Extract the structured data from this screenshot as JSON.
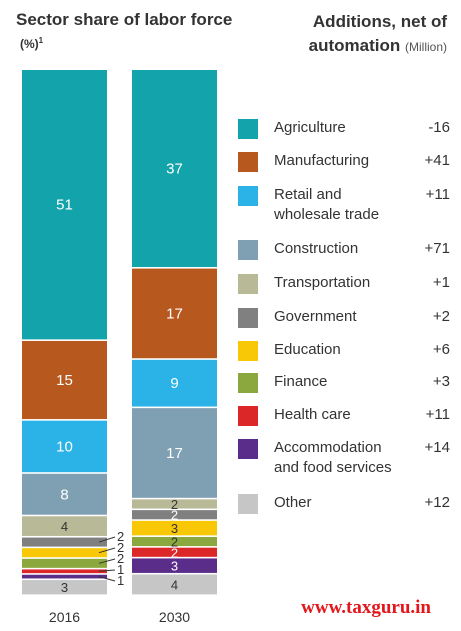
{
  "header": {
    "left_title": "Sector share of labor force",
    "left_unit": "(%)",
    "left_unit_sup": "1",
    "right_title_line1": "Additions, net of",
    "right_title_line2": "automation",
    "right_title_unit": "(Million)"
  },
  "watermark": "www.taxguru.in",
  "chart_data": {
    "type": "bar",
    "stacked": true,
    "categories": [
      "2016",
      "2030"
    ],
    "unit": "%",
    "series": [
      {
        "name": "Agriculture",
        "values": [
          51,
          37
        ],
        "labels": [
          "51",
          "37"
        ],
        "color": "#13a3ab",
        "net_addition": "-16"
      },
      {
        "name": "Manufacturing",
        "values": [
          15,
          17
        ],
        "labels": [
          "15",
          "17"
        ],
        "color": "#b7591f",
        "net_addition": "+41"
      },
      {
        "name": "Retail and wholesale trade",
        "values": [
          10,
          9
        ],
        "labels": [
          "10",
          "9"
        ],
        "color": "#2bb3e8",
        "net_addition": "+11"
      },
      {
        "name": "Construction",
        "values": [
          8,
          17
        ],
        "labels": [
          "8",
          "17"
        ],
        "color": "#7f9fb2",
        "net_addition": "+71"
      },
      {
        "name": "Transportation",
        "values": [
          4,
          2
        ],
        "labels": [
          "4",
          "2"
        ],
        "color": "#b8b996",
        "net_addition": "+1"
      },
      {
        "name": "Government",
        "values": [
          2,
          2
        ],
        "labels": [
          "2",
          "2"
        ],
        "color": "#808080",
        "net_addition": "+2"
      },
      {
        "name": "Education",
        "values": [
          2,
          3
        ],
        "labels": [
          "2",
          "3"
        ],
        "color": "#f8c807",
        "net_addition": "+6"
      },
      {
        "name": "Finance",
        "values": [
          2,
          2
        ],
        "labels": [
          "2",
          "2"
        ],
        "color": "#8aa83d",
        "net_addition": "+3"
      },
      {
        "name": "Health care",
        "values": [
          1,
          2
        ],
        "labels": [
          "1",
          "2"
        ],
        "color": "#dc2728",
        "net_addition": "+11"
      },
      {
        "name": "Accommodation and food services",
        "values": [
          1,
          3
        ],
        "labels": [
          "1",
          "3"
        ],
        "color": "#5b2d8a",
        "net_addition": "+14"
      },
      {
        "name": "Other",
        "values": [
          3,
          4
        ],
        "labels": [
          "3",
          "4"
        ],
        "color": "#c6c6c6",
        "net_addition": "+12"
      }
    ],
    "legend_lines": [
      [
        "Agriculture"
      ],
      [
        "Manufacturing"
      ],
      [
        "Retail and",
        "wholesale trade"
      ],
      [
        "Construction"
      ],
      [
        "Transportation"
      ],
      [
        "Government"
      ],
      [
        "Education"
      ],
      [
        "Finance"
      ],
      [
        "Health care"
      ],
      [
        "Accommodation",
        "and food services"
      ],
      [
        "Other"
      ]
    ]
  }
}
